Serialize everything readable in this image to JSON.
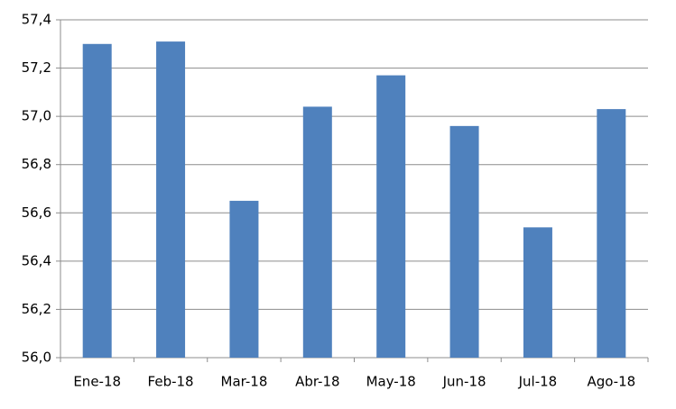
{
  "chart_data": {
    "type": "bar",
    "categories": [
      "Ene-18",
      "Feb-18",
      "Mar-18",
      "Abr-18",
      "May-18",
      "Jun-18",
      "Jul-18",
      "Ago-18"
    ],
    "values": [
      57.3,
      57.31,
      56.65,
      57.04,
      57.17,
      56.96,
      56.54,
      57.03
    ],
    "color": "#4f81bd",
    "ylim": [
      56.0,
      57.4
    ],
    "yticks": [
      {
        "value": 56.0,
        "label": "56,0"
      },
      {
        "value": 56.2,
        "label": "56,2"
      },
      {
        "value": 56.4,
        "label": "56,4"
      },
      {
        "value": 56.6,
        "label": "56,6"
      },
      {
        "value": 56.8,
        "label": "56,8"
      },
      {
        "value": 57.0,
        "label": "57,0"
      },
      {
        "value": 57.2,
        "label": "57,2"
      },
      {
        "value": 57.4,
        "label": "57,4"
      }
    ],
    "grid": true
  }
}
